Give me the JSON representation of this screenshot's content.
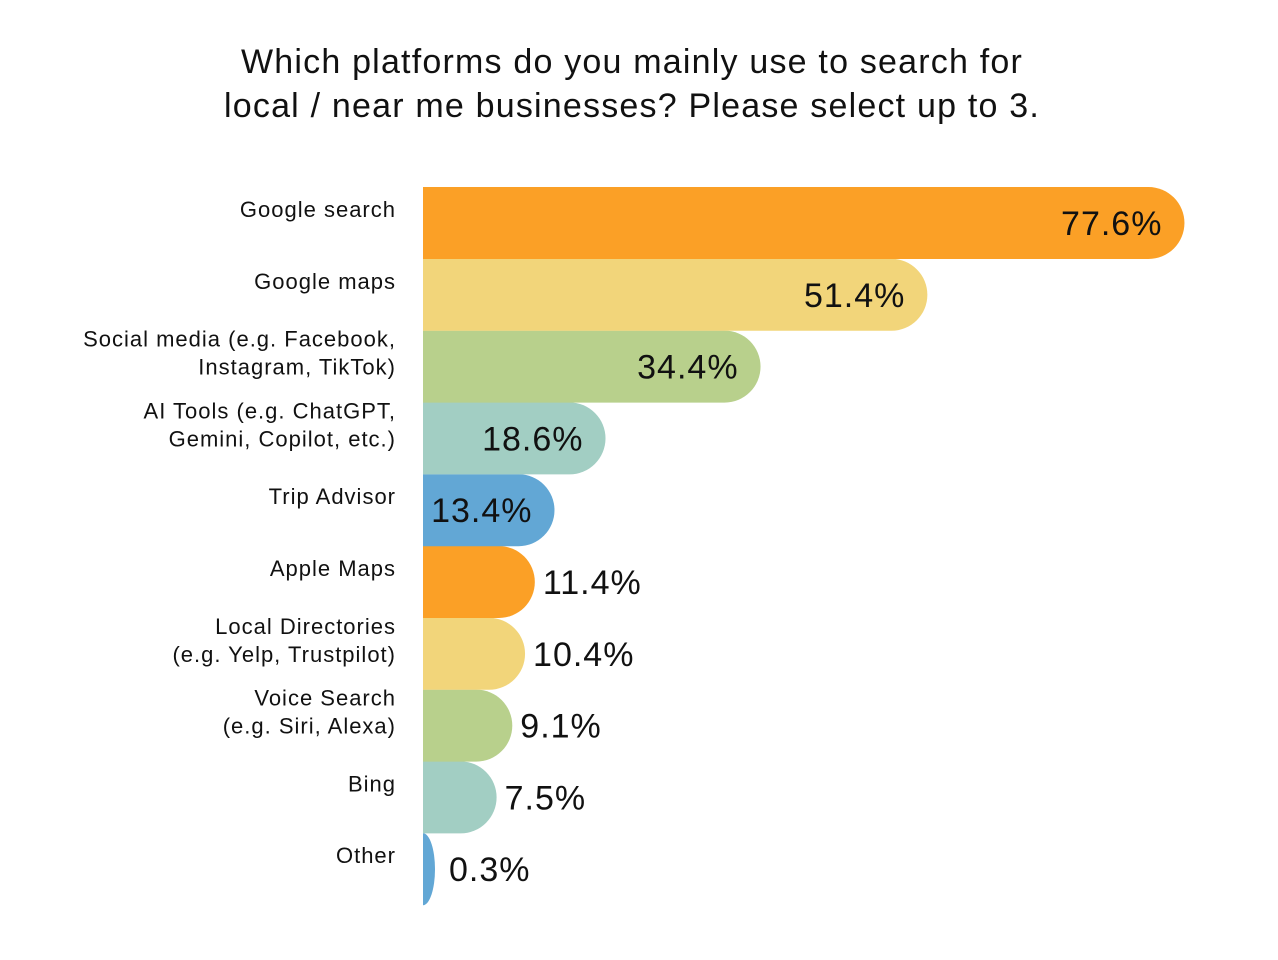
{
  "chart_data": {
    "type": "bar",
    "orientation": "horizontal",
    "title_lines": [
      "Which platforms do you mainly use to search for",
      "local / near me businesses? Please select up to 3."
    ],
    "categories": [
      [
        "Google search"
      ],
      [
        "Google maps"
      ],
      [
        "Social media (e.g. Facebook,",
        "Instagram, TikTok)"
      ],
      [
        "AI Tools (e.g. ChatGPT,",
        "Gemini, Copilot, etc.)"
      ],
      [
        "Trip Advisor"
      ],
      [
        "Apple Maps"
      ],
      [
        "Local Directories",
        "(e.g. Yelp, Trustpilot)"
      ],
      [
        "Voice Search",
        "(e.g. Siri, Alexa)"
      ],
      [
        "Bing"
      ],
      [
        "Other"
      ]
    ],
    "values": [
      77.6,
      51.4,
      34.4,
      18.6,
      13.4,
      11.4,
      10.4,
      9.1,
      7.5,
      0.3
    ],
    "value_labels": [
      "77.6%",
      "51.4%",
      "34.4%",
      "18.6%",
      "13.4%",
      "11.4%",
      "10.4%",
      "9.1%",
      "7.5%",
      "0.3%"
    ],
    "colors": [
      "#FBA026",
      "#F2D57A",
      "#B8D08C",
      "#A2CEC3",
      "#62A7D5",
      "#FBA026",
      "#F2D57A",
      "#B8D08C",
      "#A2CEC3",
      "#62A7D5"
    ],
    "xlim": [
      0,
      80
    ],
    "grid": false,
    "legend": "none"
  }
}
